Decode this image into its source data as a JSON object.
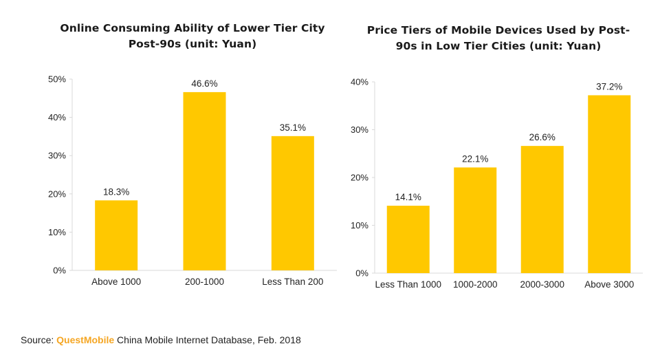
{
  "colors": {
    "bar": "#FFC800",
    "axis": "#d9d9d9",
    "text": "#222222",
    "brand": "#F5A623"
  },
  "charts": [
    {
      "title_line1": "Online Consuming Ability of Lower Tier City",
      "title_line2": "Post-90s (unit: Yuan)"
    },
    {
      "title_line1": "Price Tiers of Mobile Devices Used by Post-",
      "title_line2": "90s in Low Tier Cities (unit: Yuan)"
    }
  ],
  "chart_data": [
    {
      "type": "bar",
      "title": "Online Consuming Ability of Lower Tier City Post-90s (unit: Yuan)",
      "categories": [
        "Above 1000",
        "200-1000",
        "Less Than 200"
      ],
      "values": [
        18.3,
        46.6,
        35.1
      ],
      "value_labels": [
        "18.3%",
        "46.6%",
        "35.1%"
      ],
      "yticks": [
        "0%",
        "10%",
        "20%",
        "30%",
        "40%",
        "50%"
      ],
      "ylim": [
        0,
        50
      ],
      "grid": false,
      "legend": "none"
    },
    {
      "type": "bar",
      "title": "Price Tiers of Mobile Devices Used by Post-90s in Low Tier Cities (unit: Yuan)",
      "categories": [
        "Less Than 1000",
        "1000-2000",
        "2000-3000",
        "Above 3000"
      ],
      "values": [
        14.1,
        22.1,
        26.6,
        37.2
      ],
      "value_labels": [
        "14.1%",
        "22.1%",
        "26.6%",
        "37.2%"
      ],
      "yticks": [
        "0%",
        "10%",
        "20%",
        "30%",
        "40%"
      ],
      "ylim": [
        0,
        40
      ],
      "grid": false,
      "legend": "none"
    }
  ],
  "source": {
    "prefix": "Source: ",
    "brand": "QuestMobile",
    "rest": " China Mobile Internet Database, Feb. 2018"
  }
}
